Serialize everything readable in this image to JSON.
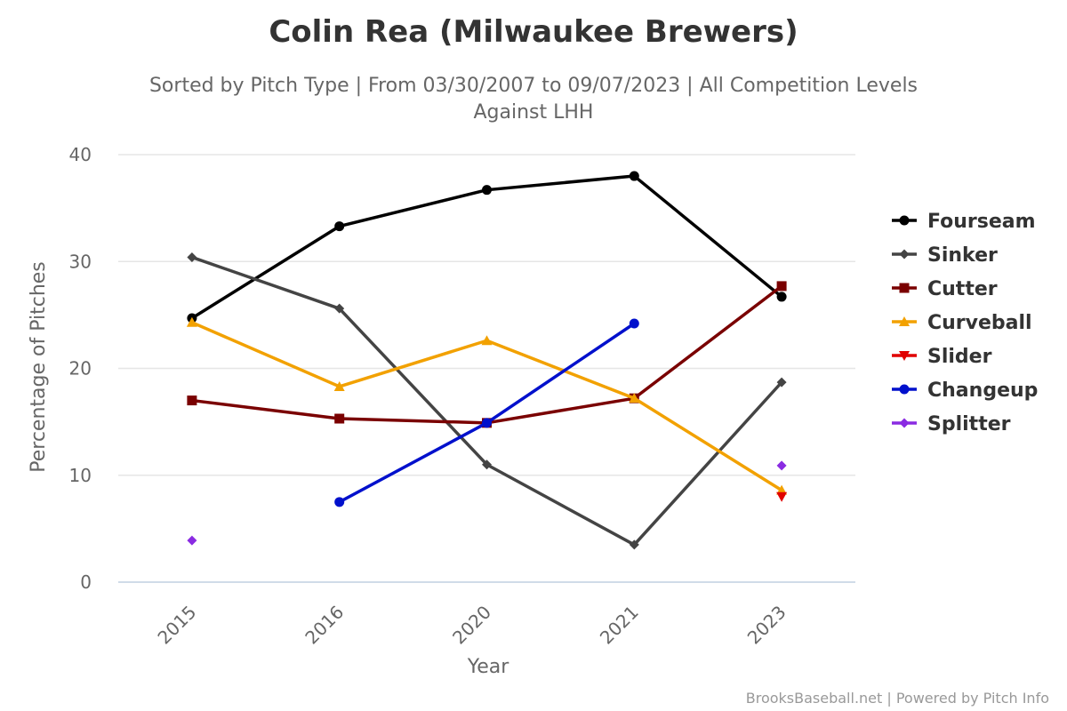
{
  "header": {
    "title": "Colin Rea (Milwaukee Brewers)",
    "subtitle_line1": "Sorted by Pitch Type | From 03/30/2007 to 09/07/2023 | All Competition Levels",
    "subtitle_line2": "Against LHH"
  },
  "credits": "BrooksBaseball.net | Powered by Pitch Info",
  "chart_data": {
    "type": "line",
    "xlabel": "Year",
    "ylabel": "Percentage of Pitches",
    "categories": [
      "2015",
      "2016",
      "2020",
      "2021",
      "2023"
    ],
    "ylim": [
      0,
      40
    ],
    "yticks": [
      0,
      10,
      20,
      30,
      40
    ],
    "grid": true,
    "legend_position": "right",
    "series": [
      {
        "name": "Fourseam",
        "color": "#000000",
        "marker": "circle",
        "values": [
          24.7,
          33.3,
          36.7,
          38.0,
          26.7
        ]
      },
      {
        "name": "Sinker",
        "color": "#444444",
        "marker": "diamond",
        "values": [
          30.4,
          25.6,
          11.0,
          3.5,
          18.7
        ]
      },
      {
        "name": "Cutter",
        "color": "#7a0000",
        "marker": "square",
        "values": [
          17.0,
          15.3,
          14.9,
          17.2,
          27.7
        ]
      },
      {
        "name": "Curveball",
        "color": "#f2a100",
        "marker": "triangle-up",
        "values": [
          24.3,
          18.3,
          22.6,
          17.2,
          8.6
        ]
      },
      {
        "name": "Slider",
        "color": "#e00000",
        "marker": "triangle-down",
        "values": [
          null,
          null,
          null,
          null,
          8.0
        ]
      },
      {
        "name": "Changeup",
        "color": "#0010cc",
        "marker": "circle",
        "values": [
          null,
          7.5,
          14.9,
          24.2,
          null
        ]
      },
      {
        "name": "Splitter",
        "color": "#8a2be2",
        "marker": "diamond",
        "values": [
          3.9,
          null,
          null,
          null,
          10.9
        ]
      }
    ]
  }
}
